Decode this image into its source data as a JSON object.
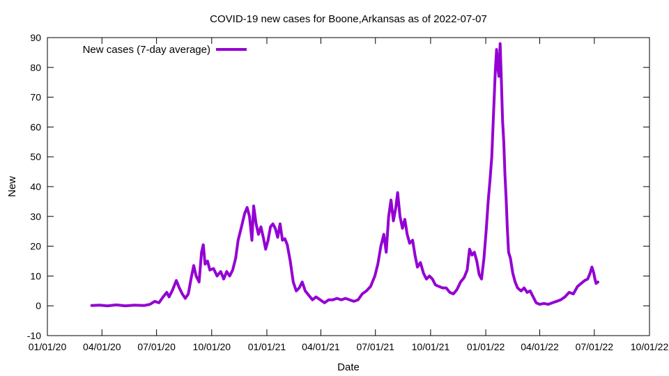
{
  "chart_data": {
    "type": "line",
    "title": "COVID-19 new cases for Boone,Arkansas as of 2022-07-07",
    "xlabel": "Date",
    "ylabel": "New",
    "xlim": [
      "2020-01-01",
      "2022-10-01"
    ],
    "ylim": [
      -10,
      90
    ],
    "x_ticks": [
      "01/01/20",
      "04/01/20",
      "07/01/20",
      "10/01/20",
      "01/01/21",
      "04/01/21",
      "07/01/21",
      "10/01/21",
      "01/01/22",
      "04/01/22",
      "07/01/22",
      "10/01/22"
    ],
    "y_ticks": [
      "-10",
      "0",
      "10",
      "20",
      "30",
      "40",
      "50",
      "60",
      "70",
      "80",
      "90"
    ],
    "legend_position": "top-left",
    "series": [
      {
        "name": "New cases (7-day average)",
        "color": "#9400d3",
        "points": [
          [
            "2020-03-15",
            0.1
          ],
          [
            "2020-03-28",
            0.2
          ],
          [
            "2020-04-10",
            0.0
          ],
          [
            "2020-04-25",
            0.3
          ],
          [
            "2020-05-10",
            0.0
          ],
          [
            "2020-05-25",
            0.2
          ],
          [
            "2020-06-10",
            0.1
          ],
          [
            "2020-06-20",
            0.5
          ],
          [
            "2020-06-28",
            1.5
          ],
          [
            "2020-07-05",
            1.0
          ],
          [
            "2020-07-12",
            3.0
          ],
          [
            "2020-07-18",
            4.5
          ],
          [
            "2020-07-22",
            3.0
          ],
          [
            "2020-07-28",
            5.5
          ],
          [
            "2020-08-03",
            8.5
          ],
          [
            "2020-08-08",
            6.0
          ],
          [
            "2020-08-13",
            4.0
          ],
          [
            "2020-08-18",
            2.5
          ],
          [
            "2020-08-23",
            4.0
          ],
          [
            "2020-08-28",
            9.5
          ],
          [
            "2020-09-01",
            13.5
          ],
          [
            "2020-09-05",
            10.0
          ],
          [
            "2020-09-10",
            8.0
          ],
          [
            "2020-09-14",
            18.0
          ],
          [
            "2020-09-17",
            20.5
          ],
          [
            "2020-09-20",
            14.0
          ],
          [
            "2020-09-24",
            15.0
          ],
          [
            "2020-09-28",
            12.0
          ],
          [
            "2020-10-04",
            12.5
          ],
          [
            "2020-10-10",
            10.0
          ],
          [
            "2020-10-16",
            11.5
          ],
          [
            "2020-10-21",
            9.0
          ],
          [
            "2020-10-26",
            11.5
          ],
          [
            "2020-10-31",
            10.0
          ],
          [
            "2020-11-05",
            12.0
          ],
          [
            "2020-11-10",
            16.0
          ],
          [
            "2020-11-14",
            22.0
          ],
          [
            "2020-11-19",
            26.0
          ],
          [
            "2020-11-25",
            31.0
          ],
          [
            "2020-11-29",
            33.0
          ],
          [
            "2020-12-03",
            30.0
          ],
          [
            "2020-12-07",
            22.0
          ],
          [
            "2020-12-10",
            33.5
          ],
          [
            "2020-12-14",
            27.5
          ],
          [
            "2020-12-18",
            24.0
          ],
          [
            "2020-12-22",
            26.5
          ],
          [
            "2020-12-26",
            23.0
          ],
          [
            "2020-12-30",
            19.0
          ],
          [
            "2021-01-03",
            22.0
          ],
          [
            "2021-01-07",
            26.5
          ],
          [
            "2021-01-11",
            27.5
          ],
          [
            "2021-01-15",
            26.0
          ],
          [
            "2021-01-19",
            23.0
          ],
          [
            "2021-01-23",
            27.5
          ],
          [
            "2021-01-27",
            22.0
          ],
          [
            "2021-01-31",
            22.5
          ],
          [
            "2021-02-04",
            20.5
          ],
          [
            "2021-02-09",
            15.0
          ],
          [
            "2021-02-14",
            8.0
          ],
          [
            "2021-02-19",
            5.0
          ],
          [
            "2021-02-24",
            6.0
          ],
          [
            "2021-03-01",
            8.0
          ],
          [
            "2021-03-06",
            5.0
          ],
          [
            "2021-03-12",
            3.5
          ],
          [
            "2021-03-18",
            2.0
          ],
          [
            "2021-03-24",
            3.0
          ],
          [
            "2021-03-31",
            2.0
          ],
          [
            "2021-04-07",
            1.0
          ],
          [
            "2021-04-14",
            2.0
          ],
          [
            "2021-04-21",
            2.0
          ],
          [
            "2021-04-28",
            2.5
          ],
          [
            "2021-05-05",
            2.0
          ],
          [
            "2021-05-12",
            2.5
          ],
          [
            "2021-05-19",
            2.0
          ],
          [
            "2021-05-26",
            1.5
          ],
          [
            "2021-06-02",
            2.0
          ],
          [
            "2021-06-09",
            4.0
          ],
          [
            "2021-06-16",
            5.0
          ],
          [
            "2021-06-23",
            6.5
          ],
          [
            "2021-06-30",
            10.0
          ],
          [
            "2021-07-05",
            14.0
          ],
          [
            "2021-07-10",
            20.0
          ],
          [
            "2021-07-15",
            24.0
          ],
          [
            "2021-07-19",
            18.0
          ],
          [
            "2021-07-23",
            30.0
          ],
          [
            "2021-07-27",
            35.5
          ],
          [
            "2021-07-31",
            28.5
          ],
          [
            "2021-08-04",
            33.0
          ],
          [
            "2021-08-07",
            38.0
          ],
          [
            "2021-08-11",
            30.0
          ],
          [
            "2021-08-15",
            26.0
          ],
          [
            "2021-08-19",
            29.0
          ],
          [
            "2021-08-23",
            24.0
          ],
          [
            "2021-08-27",
            21.0
          ],
          [
            "2021-09-01",
            22.0
          ],
          [
            "2021-09-05",
            17.0
          ],
          [
            "2021-09-09",
            13.0
          ],
          [
            "2021-09-14",
            14.5
          ],
          [
            "2021-09-19",
            11.0
          ],
          [
            "2021-09-24",
            9.0
          ],
          [
            "2021-09-29",
            10.0
          ],
          [
            "2021-10-04",
            9.0
          ],
          [
            "2021-10-09",
            7.0
          ],
          [
            "2021-10-15",
            6.5
          ],
          [
            "2021-10-21",
            6.0
          ],
          [
            "2021-10-27",
            6.0
          ],
          [
            "2021-11-02",
            4.5
          ],
          [
            "2021-11-08",
            4.0
          ],
          [
            "2021-11-14",
            5.5
          ],
          [
            "2021-11-20",
            8.0
          ],
          [
            "2021-11-26",
            9.5
          ],
          [
            "2021-12-01",
            12.0
          ],
          [
            "2021-12-05",
            19.0
          ],
          [
            "2021-12-09",
            17.0
          ],
          [
            "2021-12-13",
            18.0
          ],
          [
            "2021-12-17",
            15.0
          ],
          [
            "2021-12-21",
            10.5
          ],
          [
            "2021-12-25",
            9.0
          ],
          [
            "2021-12-29",
            16.0
          ],
          [
            "2022-01-02",
            26.0
          ],
          [
            "2022-01-05",
            35.0
          ],
          [
            "2022-01-08",
            42.0
          ],
          [
            "2022-01-11",
            50.0
          ],
          [
            "2022-01-14",
            65.0
          ],
          [
            "2022-01-17",
            79.0
          ],
          [
            "2022-01-19",
            86.0
          ],
          [
            "2022-01-21",
            80.0
          ],
          [
            "2022-01-23",
            77.0
          ],
          [
            "2022-01-25",
            88.0
          ],
          [
            "2022-01-27",
            76.0
          ],
          [
            "2022-01-29",
            62.0
          ],
          [
            "2022-01-31",
            55.0
          ],
          [
            "2022-02-02",
            44.0
          ],
          [
            "2022-02-04",
            36.0
          ],
          [
            "2022-02-06",
            26.0
          ],
          [
            "2022-02-08",
            18.0
          ],
          [
            "2022-02-11",
            16.0
          ],
          [
            "2022-02-15",
            11.0
          ],
          [
            "2022-02-19",
            8.0
          ],
          [
            "2022-02-23",
            6.0
          ],
          [
            "2022-03-01",
            5.0
          ],
          [
            "2022-03-06",
            6.0
          ],
          [
            "2022-03-11",
            4.5
          ],
          [
            "2022-03-16",
            5.0
          ],
          [
            "2022-03-21",
            3.0
          ],
          [
            "2022-03-26",
            1.0
          ],
          [
            "2022-04-01",
            0.5
          ],
          [
            "2022-04-08",
            0.8
          ],
          [
            "2022-04-15",
            0.5
          ],
          [
            "2022-04-22",
            1.0
          ],
          [
            "2022-04-29",
            1.5
          ],
          [
            "2022-05-06",
            2.0
          ],
          [
            "2022-05-13",
            3.0
          ],
          [
            "2022-05-20",
            4.5
          ],
          [
            "2022-05-27",
            4.0
          ],
          [
            "2022-06-03",
            6.5
          ],
          [
            "2022-06-09",
            7.5
          ],
          [
            "2022-06-15",
            8.5
          ],
          [
            "2022-06-20",
            9.0
          ],
          [
            "2022-06-24",
            11.0
          ],
          [
            "2022-06-27",
            13.0
          ],
          [
            "2022-06-30",
            11.0
          ],
          [
            "2022-07-02",
            9.0
          ],
          [
            "2022-07-04",
            7.5
          ],
          [
            "2022-07-07",
            8.0
          ]
        ]
      }
    ]
  }
}
